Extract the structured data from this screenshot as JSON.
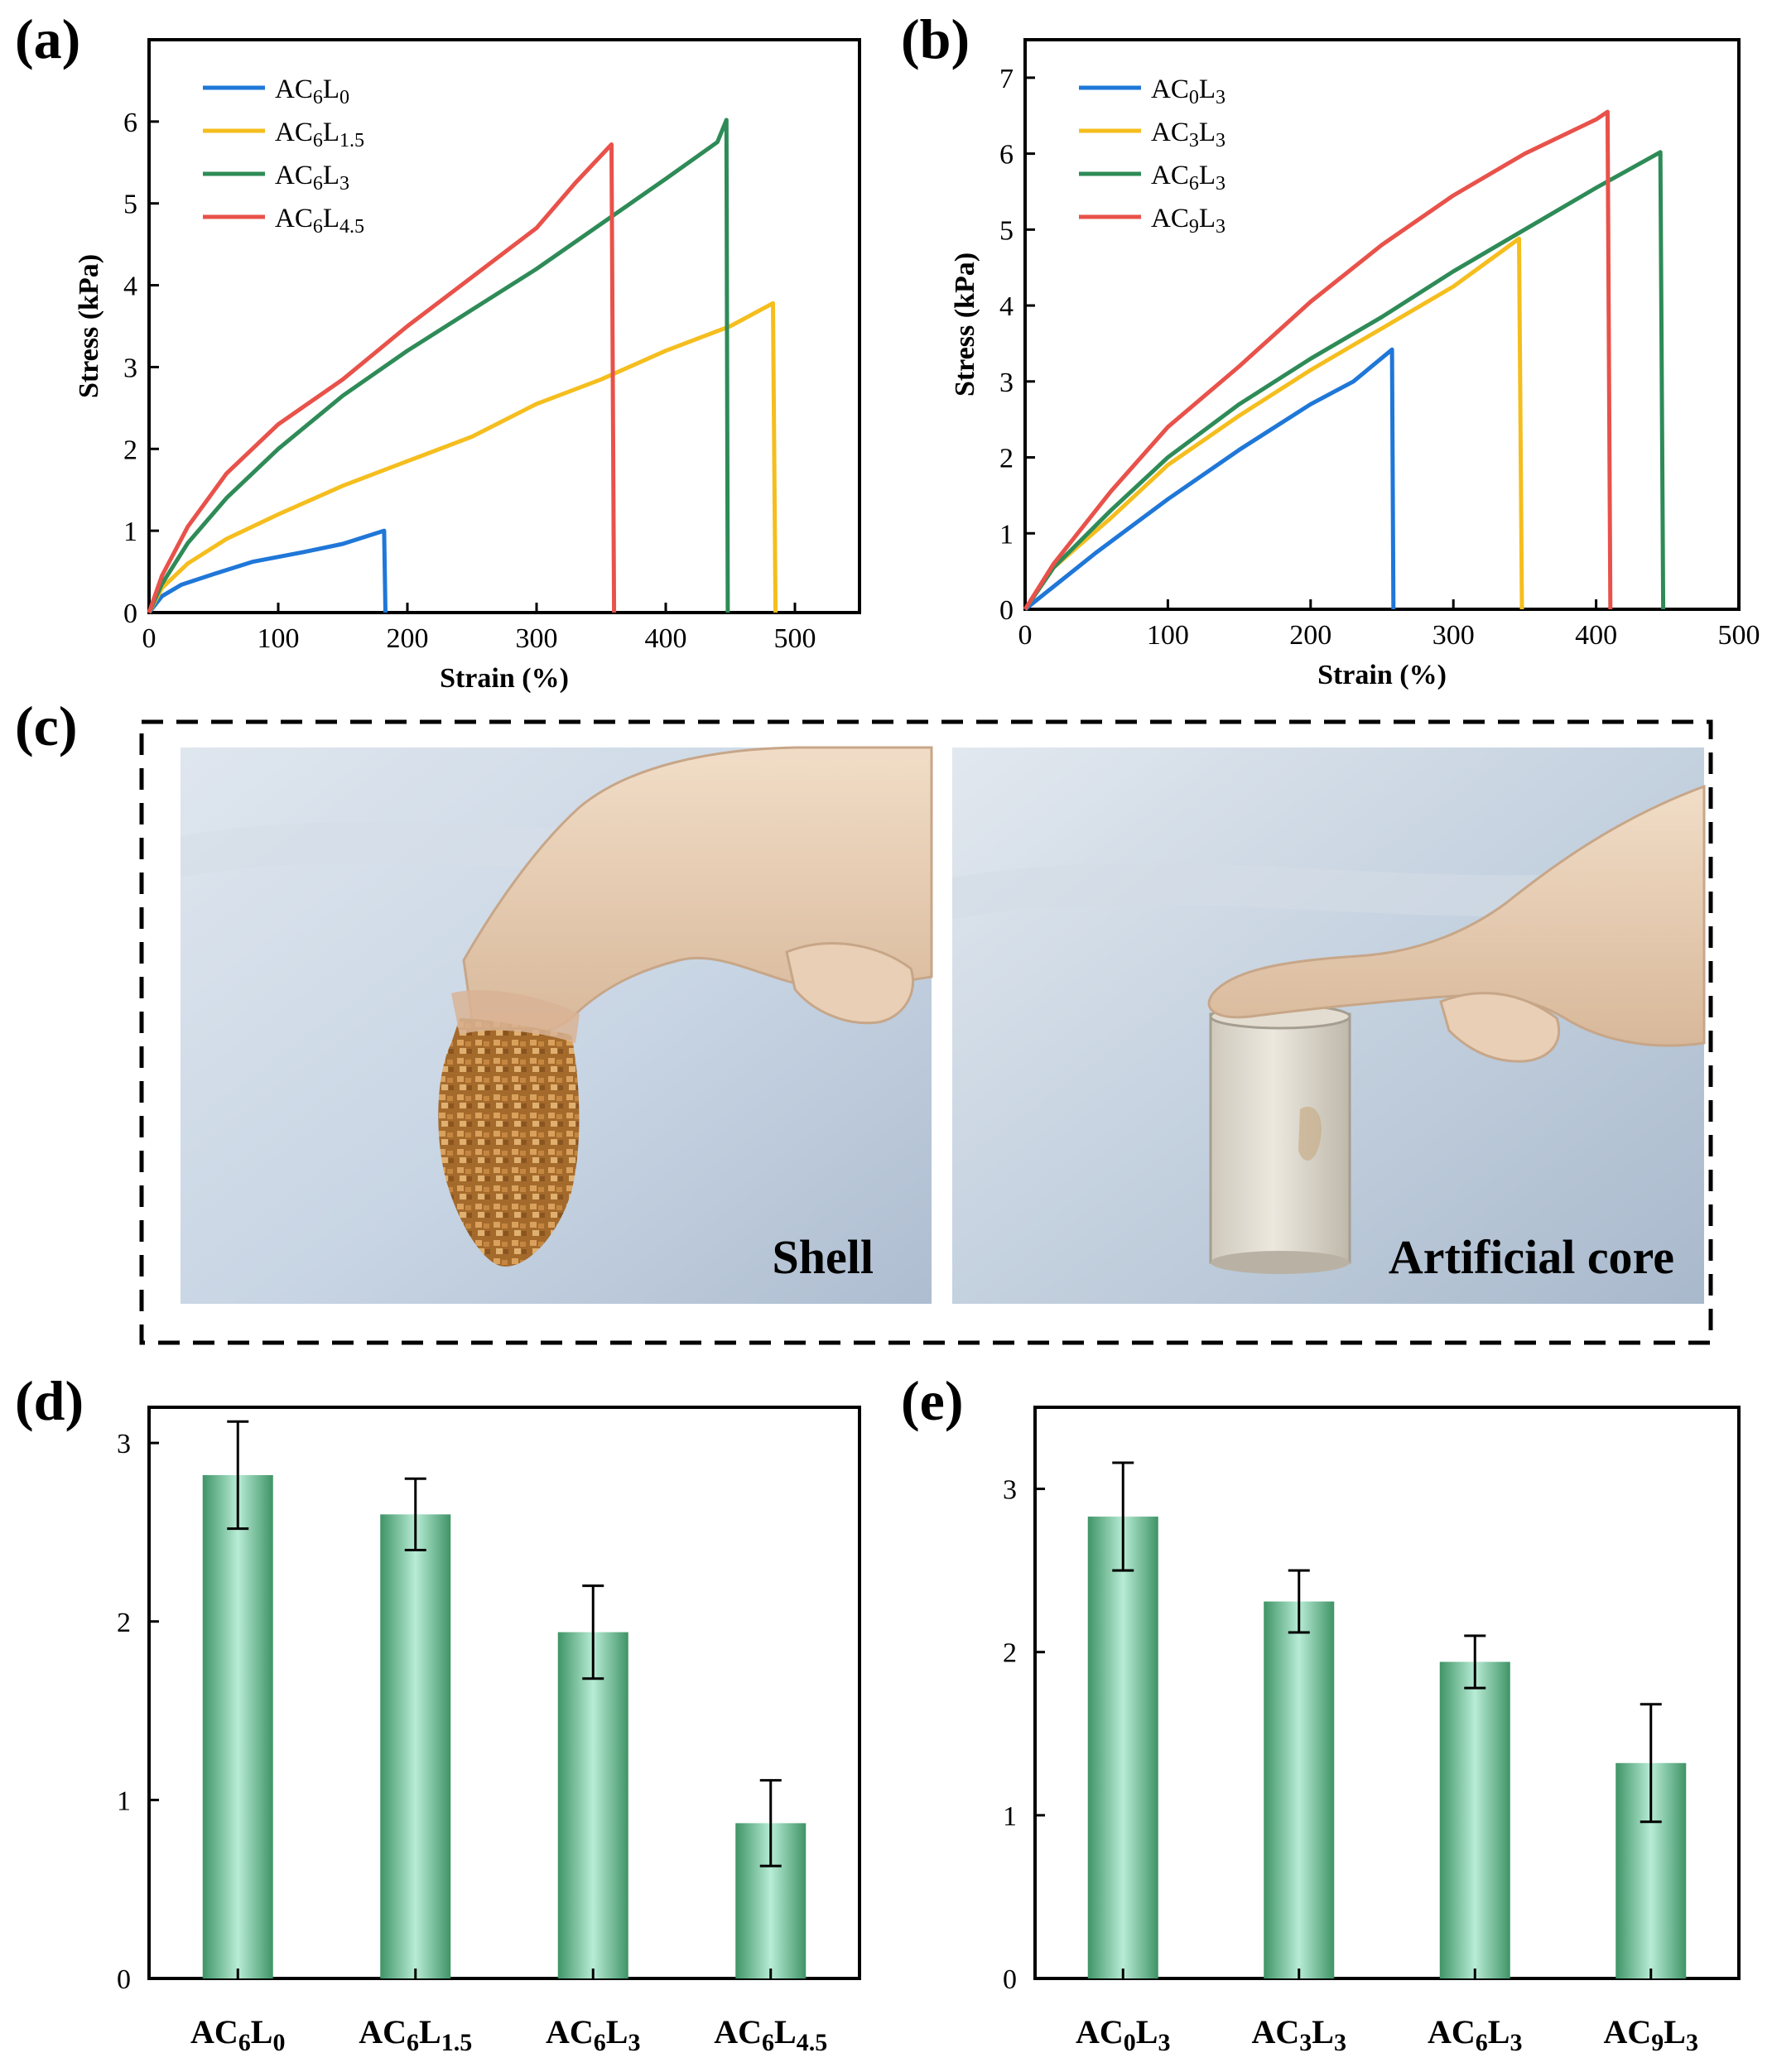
{
  "panel_labels": [
    "(a)",
    "(b)",
    "(c)",
    "(d)",
    "(e)"
  ],
  "photos": {
    "left_caption": "Shell",
    "right_caption": "Artificial core"
  },
  "colors": {
    "blue": "#1f77d8",
    "yellow": "#f5be1e",
    "green": "#2e8b57",
    "red": "#e8524a",
    "bar_dark": "#3f9466",
    "bar_light": "#b8ecd6"
  },
  "chart_data": [
    {
      "id": "a",
      "type": "line",
      "xlabel": "Strain (%)",
      "ylabel": "Stress (kPa)",
      "xlim": [
        0,
        550
      ],
      "ylim": [
        0,
        7
      ],
      "xticks": [
        0,
        100,
        200,
        300,
        400,
        500
      ],
      "yticks": [
        0,
        1,
        2,
        3,
        4,
        5,
        6
      ],
      "legend_position": "top-left",
      "series": [
        {
          "name": "AC6L0",
          "name_base": "AC",
          "name_sub1": "6",
          "name_mid": "L",
          "name_sub2": "0",
          "color": "#1f77d8",
          "points": [
            [
              0,
              0
            ],
            [
              10,
              0.2
            ],
            [
              25,
              0.34
            ],
            [
              50,
              0.47
            ],
            [
              80,
              0.62
            ],
            [
              120,
              0.74
            ],
            [
              150,
              0.84
            ],
            [
              182,
              1.0
            ],
            [
              183,
              0
            ]
          ]
        },
        {
          "name": "AC6L1.5",
          "name_base": "AC",
          "name_sub1": "6",
          "name_mid": "L",
          "name_sub2": "1.5",
          "color": "#f5be1e",
          "points": [
            [
              0,
              0
            ],
            [
              10,
              0.3
            ],
            [
              30,
              0.6
            ],
            [
              60,
              0.9
            ],
            [
              100,
              1.2
            ],
            [
              150,
              1.55
            ],
            [
              200,
              1.85
            ],
            [
              250,
              2.15
            ],
            [
              300,
              2.55
            ],
            [
              350,
              2.85
            ],
            [
              400,
              3.2
            ],
            [
              450,
              3.5
            ],
            [
              483,
              3.78
            ],
            [
              485,
              0
            ]
          ]
        },
        {
          "name": "AC6L3",
          "name_base": "AC",
          "name_sub1": "6",
          "name_mid": "L",
          "name_sub2": "3",
          "color": "#2e8b57",
          "points": [
            [
              0,
              0
            ],
            [
              10,
              0.35
            ],
            [
              30,
              0.85
            ],
            [
              60,
              1.4
            ],
            [
              100,
              2.0
            ],
            [
              150,
              2.65
            ],
            [
              200,
              3.2
            ],
            [
              250,
              3.7
            ],
            [
              300,
              4.2
            ],
            [
              350,
              4.75
            ],
            [
              400,
              5.3
            ],
            [
              440,
              5.75
            ],
            [
              447,
              6.02
            ],
            [
              448,
              0
            ]
          ]
        },
        {
          "name": "AC6L4.5",
          "name_base": "AC",
          "name_sub1": "6",
          "name_mid": "L",
          "name_sub2": "4.5",
          "color": "#e8524a",
          "points": [
            [
              0,
              0
            ],
            [
              10,
              0.45
            ],
            [
              30,
              1.05
            ],
            [
              60,
              1.7
            ],
            [
              100,
              2.3
            ],
            [
              150,
              2.85
            ],
            [
              200,
              3.5
            ],
            [
              250,
              4.1
            ],
            [
              300,
              4.7
            ],
            [
              330,
              5.25
            ],
            [
              358,
              5.72
            ],
            [
              360,
              0
            ]
          ]
        }
      ]
    },
    {
      "id": "b",
      "type": "line",
      "xlabel": "Strain (%)",
      "ylabel": "Stress (kPa)",
      "xlim": [
        0,
        500
      ],
      "ylim": [
        0,
        7.5
      ],
      "xticks": [
        0,
        100,
        200,
        300,
        400,
        500
      ],
      "yticks": [
        0,
        1,
        2,
        3,
        4,
        5,
        6,
        7
      ],
      "legend_position": "top-left",
      "series": [
        {
          "name": "AC0L3",
          "name_base": "AC",
          "name_sub1": "0",
          "name_mid": "L",
          "name_sub2": "3",
          "color": "#1f77d8",
          "points": [
            [
              0,
              0
            ],
            [
              20,
              0.3
            ],
            [
              50,
              0.75
            ],
            [
              100,
              1.45
            ],
            [
              150,
              2.1
            ],
            [
              200,
              2.7
            ],
            [
              230,
              3.0
            ],
            [
              257,
              3.42
            ],
            [
              258,
              0
            ]
          ]
        },
        {
          "name": "AC3L3",
          "name_base": "AC",
          "name_sub1": "3",
          "name_mid": "L",
          "name_sub2": "3",
          "color": "#f5be1e",
          "points": [
            [
              0,
              0
            ],
            [
              20,
              0.55
            ],
            [
              60,
              1.2
            ],
            [
              100,
              1.9
            ],
            [
              150,
              2.55
            ],
            [
              200,
              3.15
            ],
            [
              250,
              3.7
            ],
            [
              300,
              4.25
            ],
            [
              346,
              4.88
            ],
            [
              348,
              0
            ]
          ]
        },
        {
          "name": "AC6L3",
          "name_base": "AC",
          "name_sub1": "6",
          "name_mid": "L",
          "name_sub2": "3",
          "color": "#2e8b57",
          "points": [
            [
              0,
              0
            ],
            [
              20,
              0.55
            ],
            [
              60,
              1.3
            ],
            [
              100,
              2.0
            ],
            [
              150,
              2.7
            ],
            [
              200,
              3.3
            ],
            [
              250,
              3.85
            ],
            [
              300,
              4.45
            ],
            [
              350,
              5.0
            ],
            [
              400,
              5.55
            ],
            [
              445,
              6.02
            ],
            [
              447,
              0
            ]
          ]
        },
        {
          "name": "AC9L3",
          "name_base": "AC",
          "name_sub1": "9",
          "name_mid": "L",
          "name_sub2": "3",
          "color": "#e8524a",
          "points": [
            [
              0,
              0
            ],
            [
              20,
              0.6
            ],
            [
              60,
              1.55
            ],
            [
              100,
              2.4
            ],
            [
              150,
              3.2
            ],
            [
              200,
              4.05
            ],
            [
              250,
              4.8
            ],
            [
              300,
              5.45
            ],
            [
              350,
              6.0
            ],
            [
              400,
              6.45
            ],
            [
              408,
              6.55
            ],
            [
              410,
              0
            ]
          ]
        }
      ]
    },
    {
      "id": "d",
      "type": "bar",
      "ylim": [
        0,
        3.2
      ],
      "yticks": [
        0,
        1,
        2,
        3
      ],
      "categories": [
        {
          "label": "AC6L0",
          "base": "AC",
          "sub1": "6",
          "mid": "L",
          "sub2": "0"
        },
        {
          "label": "AC6L1.5",
          "base": "AC",
          "sub1": "6",
          "mid": "L",
          "sub2": "1.5"
        },
        {
          "label": "AC6L3",
          "base": "AC",
          "sub1": "6",
          "mid": "L",
          "sub2": "3"
        },
        {
          "label": "AC6L4.5",
          "base": "AC",
          "sub1": "6",
          "mid": "L",
          "sub2": "4.5"
        }
      ],
      "values": [
        2.82,
        2.6,
        1.94,
        0.87
      ],
      "errors": [
        0.3,
        0.2,
        0.26,
        0.24
      ]
    },
    {
      "id": "e",
      "type": "bar",
      "ylim": [
        0,
        3.5
      ],
      "yticks": [
        0,
        1,
        2,
        3
      ],
      "categories": [
        {
          "label": "AC0L3",
          "base": "AC",
          "sub1": "0",
          "mid": "L",
          "sub2": "3"
        },
        {
          "label": "AC3L3",
          "base": "AC",
          "sub1": "3",
          "mid": "L",
          "sub2": "3"
        },
        {
          "label": "AC6L3",
          "base": "AC",
          "sub1": "6",
          "mid": "L",
          "sub2": "3"
        },
        {
          "label": "AC9L3",
          "base": "AC",
          "sub1": "9",
          "mid": "L",
          "sub2": "3"
        }
      ],
      "values": [
        2.83,
        2.31,
        1.94,
        1.32
      ],
      "errors": [
        0.33,
        0.19,
        0.16,
        0.36
      ]
    }
  ]
}
